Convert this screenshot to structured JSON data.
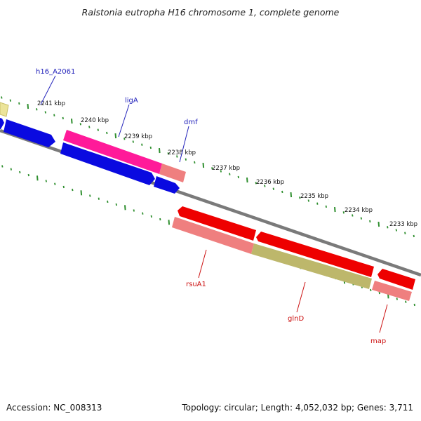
{
  "title": "Ralstonia eutropha H16 chromosome 1, complete genome",
  "footer": {
    "accession": "Accession: NC_008313",
    "topology": "Topology: circular; Length: 4,052,032 bp; Genes: 3,711"
  },
  "colors": {
    "ruler_tick": "#2f8f2f",
    "backbone": "#7a7a7a",
    "forward_label": "#2222bb",
    "reverse_label": "#cc1111",
    "blue_feature": "#0a0ae0",
    "magenta_feature": "#ff1a99",
    "pink_feature": "#ef7f7f",
    "red_feature": "#ee0000",
    "olive_feature": "#bdb76b",
    "yellow_feature": "#ece49a"
  },
  "ruler": {
    "unit": "kbp",
    "labels": [
      "2241 kbp",
      "2240 kbp",
      "2239 kbp",
      "2238 kbp",
      "2237 kbp",
      "2236 kbp",
      "2235 kbp",
      "2234 kbp",
      "2233 kbp"
    ]
  },
  "gene_labels": {
    "forward": [
      "h16_A2061",
      "ligA",
      "dmf"
    ],
    "reverse": [
      "rsuA1",
      "glnD",
      "map"
    ]
  }
}
